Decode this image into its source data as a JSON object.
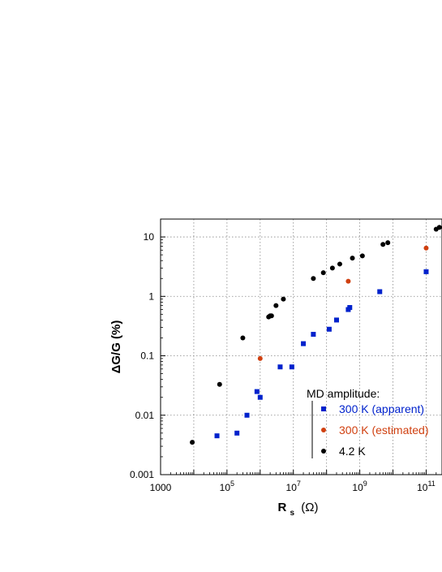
{
  "chart_data": {
    "type": "scatter",
    "title": "",
    "xscale": "log",
    "yscale": "log",
    "xlim": [
      1000,
      300000000000
    ],
    "ylim": [
      0.001,
      20
    ],
    "grid": true,
    "xticks": [
      {
        "value": 1000,
        "label": "1000"
      },
      {
        "value": 100000,
        "label": "10",
        "exp": "5"
      },
      {
        "value": 10000000,
        "label": "10",
        "exp": "7"
      },
      {
        "value": 1000000000,
        "label": "10",
        "exp": "9"
      },
      {
        "value": 100000000000,
        "label": "10",
        "exp": "11"
      }
    ],
    "yticks": [
      {
        "value": 0.001,
        "label": "0.001"
      },
      {
        "value": 0.01,
        "label": "0.01"
      },
      {
        "value": 0.1,
        "label": "0.1"
      },
      {
        "value": 1,
        "label": "1"
      },
      {
        "value": 10,
        "label": "10"
      }
    ],
    "xlabel": {
      "main": "R",
      "sub": "s",
      "unit": "(Ω)"
    },
    "ylabel": "ΔG/G (%)",
    "legend": {
      "title": "MD amplitude:",
      "placement": "bottom-right",
      "entries": [
        {
          "label": "300 K (apparent)",
          "color": "#0022cc",
          "marker": "square"
        },
        {
          "label": "300 K (estimated)",
          "color": "#d04010",
          "marker": "circle"
        },
        {
          "label": "4.2 K",
          "color": "#000000",
          "marker": "circle"
        }
      ]
    },
    "series": [
      {
        "name": "300 K (apparent)",
        "color": "#0022cc",
        "marker": "square",
        "points": [
          [
            50000,
            0.0045
          ],
          [
            200000,
            0.005
          ],
          [
            400000,
            0.01
          ],
          [
            800000,
            0.025
          ],
          [
            1000000,
            0.02
          ],
          [
            4000000,
            0.065
          ],
          [
            9000000,
            0.065
          ],
          [
            20000000,
            0.16
          ],
          [
            40000000,
            0.23
          ],
          [
            120000000,
            0.28
          ],
          [
            200000000,
            0.4
          ],
          [
            450000000,
            0.6
          ],
          [
            500000000,
            0.65
          ],
          [
            4000000000,
            1.2
          ],
          [
            100000000000,
            2.6
          ]
        ]
      },
      {
        "name": "300 K (estimated)",
        "color": "#d04010",
        "marker": "circle",
        "points": [
          [
            1000000,
            0.09
          ],
          [
            450000000,
            1.8
          ],
          [
            100000000000,
            6.5
          ]
        ]
      },
      {
        "name": "4.2 K",
        "color": "#000000",
        "marker": "circle",
        "points": [
          [
            9000,
            0.0035
          ],
          [
            60000,
            0.033
          ],
          [
            300000,
            0.2
          ],
          [
            1800000,
            0.45
          ],
          [
            2000000,
            0.47
          ],
          [
            2200000,
            0.47
          ],
          [
            3000000,
            0.7
          ],
          [
            5000000,
            0.9
          ],
          [
            40000000,
            2.0
          ],
          [
            80000000,
            2.5
          ],
          [
            150000000,
            3.0
          ],
          [
            250000000,
            3.5
          ],
          [
            600000000,
            4.4
          ],
          [
            1200000000,
            4.8
          ],
          [
            5000000000,
            7.5
          ],
          [
            7000000000,
            8.0
          ],
          [
            200000000000,
            13.5
          ],
          [
            250000000000,
            14.5
          ]
        ]
      }
    ]
  }
}
